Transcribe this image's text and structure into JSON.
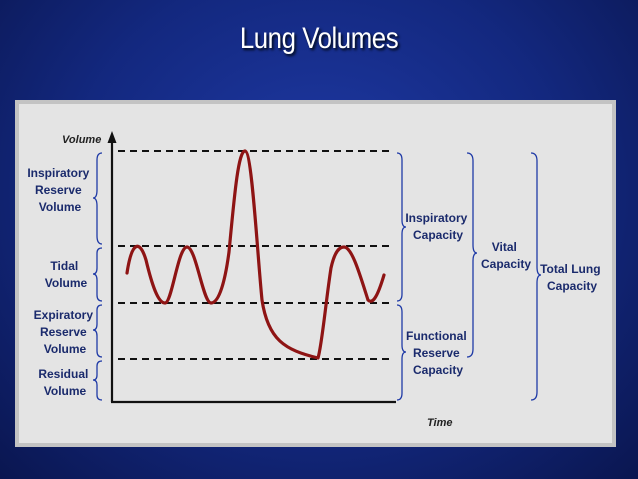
{
  "title": "Lung Volumes",
  "diagram": {
    "y_axis_label": "Volume",
    "x_axis_label": "Time",
    "left_labels": {
      "irv": [
        "Inspiratory",
        "Reserve",
        "Volume"
      ],
      "tidal": [
        "Tidal",
        "Volume"
      ],
      "erv": [
        "Expiratory",
        "Reserve",
        "Volume"
      ],
      "residual": [
        "Residual",
        "Volume"
      ]
    },
    "right_labels": {
      "inspiratory_capacity": [
        "Inspiratory",
        "Capacity"
      ],
      "functional_reserve_capacity": [
        "Functional",
        "Reserve",
        "Capacity"
      ],
      "vital_capacity": [
        "Vital",
        "Capacity"
      ],
      "total_lung_capacity": [
        "Total Lung",
        "Capacity"
      ]
    },
    "colors": {
      "curve": "#8e1414",
      "label": "#1a2a6c",
      "bracket": "#1f3aa6",
      "axis": "#111111"
    }
  }
}
